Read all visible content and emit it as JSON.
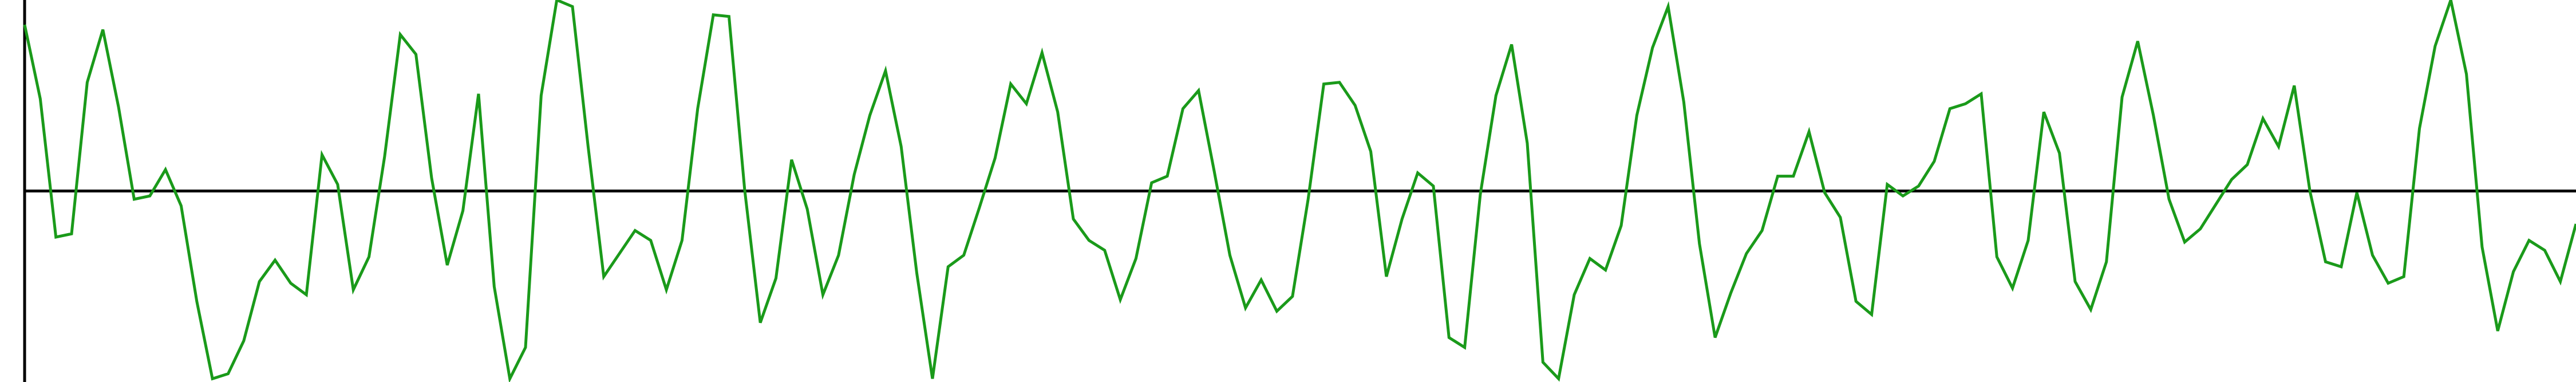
{
  "chart_data": {
    "type": "line",
    "color": "#1a9a1a",
    "ylim": [
      -116,
      116
    ],
    "values": [
      101,
      56,
      -28,
      -26,
      66,
      98,
      51,
      -5,
      -3,
      13,
      -9,
      -67,
      -114,
      -111,
      -91,
      -55,
      -42,
      -56,
      -63,
      22,
      4,
      -60,
      -40,
      21,
      95,
      83,
      8,
      -45,
      -12,
      59,
      -58,
      -114,
      -95,
      58,
      116,
      112,
      27,
      -52,
      -38,
      -24,
      -30,
      -60,
      -30,
      50,
      107,
      106,
      1,
      -80,
      -53,
      19,
      -11,
      -63,
      -39,
      10,
      46,
      73,
      27,
      -50,
      -114,
      -46,
      -39,
      -10,
      20,
      65,
      53,
      84,
      48,
      -17,
      -30,
      -36,
      -66,
      -41,
      5,
      9,
      50,
      61,
      12,
      -39,
      -71,
      -54,
      -73,
      -64,
      -5,
      65,
      66,
      52,
      24,
      -52,
      -17,
      11,
      3,
      -89,
      -95,
      -2,
      58,
      89,
      29,
      -104,
      -114,
      -63,
      -41,
      -48,
      -21,
      46,
      87,
      112,
      54,
      -32,
      -89,
      -62,
      -38,
      -24,
      9,
      9,
      36,
      -1,
      -16,
      -67,
      -75,
      4,
      -3,
      3,
      18,
      50,
      53,
      59,
      -40,
      -59,
      -30,
      48,
      23,
      -55,
      -72,
      -43,
      57,
      91,
      46,
      -5,
      -31,
      -23,
      -8,
      7,
      16,
      44,
      27,
      64,
      0,
      -43,
      -46,
      -1,
      -39,
      -56,
      -52,
      38,
      88,
      116,
      71,
      -34,
      -85,
      -49,
      -30,
      -36,
      -55,
      -20
    ]
  }
}
